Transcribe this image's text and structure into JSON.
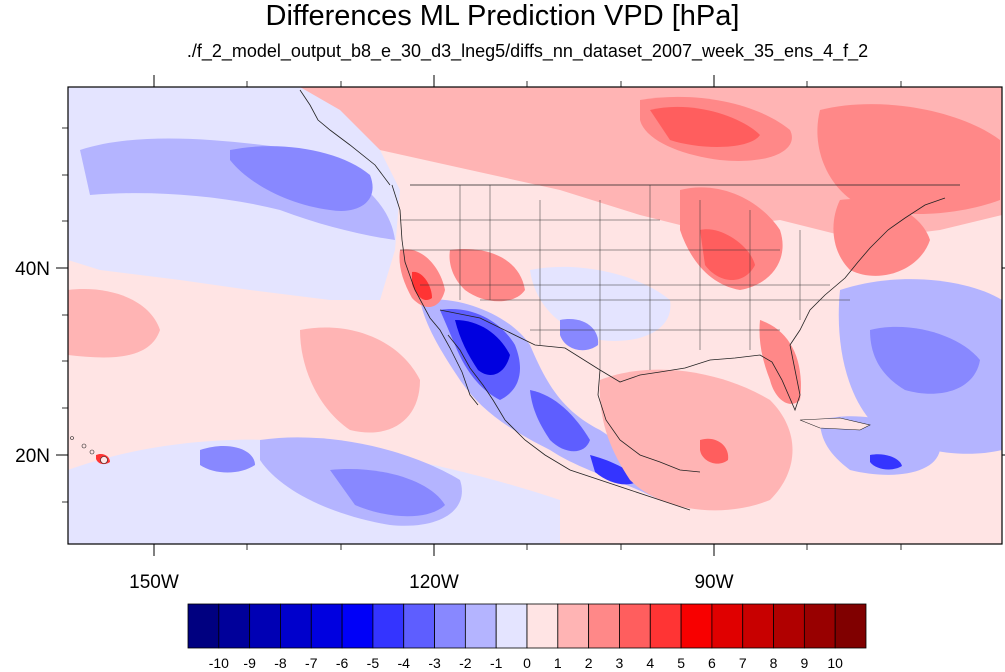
{
  "title": "Differences ML Prediction VPD [hPa]",
  "subtitle": "./f_2_model_output_b8_e_30_d3_lneg5/diffs_nn_dataset_2007_week_35_ens_4_f_2",
  "axes": {
    "lon_labels": [
      "150W",
      "120W",
      "90W"
    ],
    "lat_labels": [
      "40N",
      "20N"
    ]
  },
  "colorbar": {
    "labels": [
      "-10",
      "-9",
      "-8",
      "-7",
      "-6",
      "-5",
      "-4",
      "-3",
      "-2",
      "-1",
      "0",
      "1",
      "2",
      "3",
      "4",
      "5",
      "6",
      "7",
      "8",
      "9",
      "10"
    ],
    "colors": [
      "#000080",
      "#00009a",
      "#0000b4",
      "#0000cc",
      "#0000e0",
      "#0000f8",
      "#3434ff",
      "#5e5eff",
      "#8888ff",
      "#b4b4ff",
      "#e4e4ff",
      "#ffe4e4",
      "#ffb4b4",
      "#ff8888",
      "#ff5e5e",
      "#ff3434",
      "#f80000",
      "#e00000",
      "#c80000",
      "#b00000",
      "#980000",
      "#800000"
    ]
  },
  "map_colors": {
    "ocean_light_blue": "#e4e4ff",
    "pale_blue": "#b4b4ff",
    "mid_blue": "#8888ff",
    "blue": "#5e5eff",
    "strong_blue": "#3434ff",
    "deep_blue": "#0000e0",
    "pale_pink": "#ffe4e4",
    "pink": "#ffb4b4",
    "salmon": "#ff8888",
    "red": "#ff5e5e",
    "strong_red": "#ff3434",
    "land_outline": "#222222"
  }
}
